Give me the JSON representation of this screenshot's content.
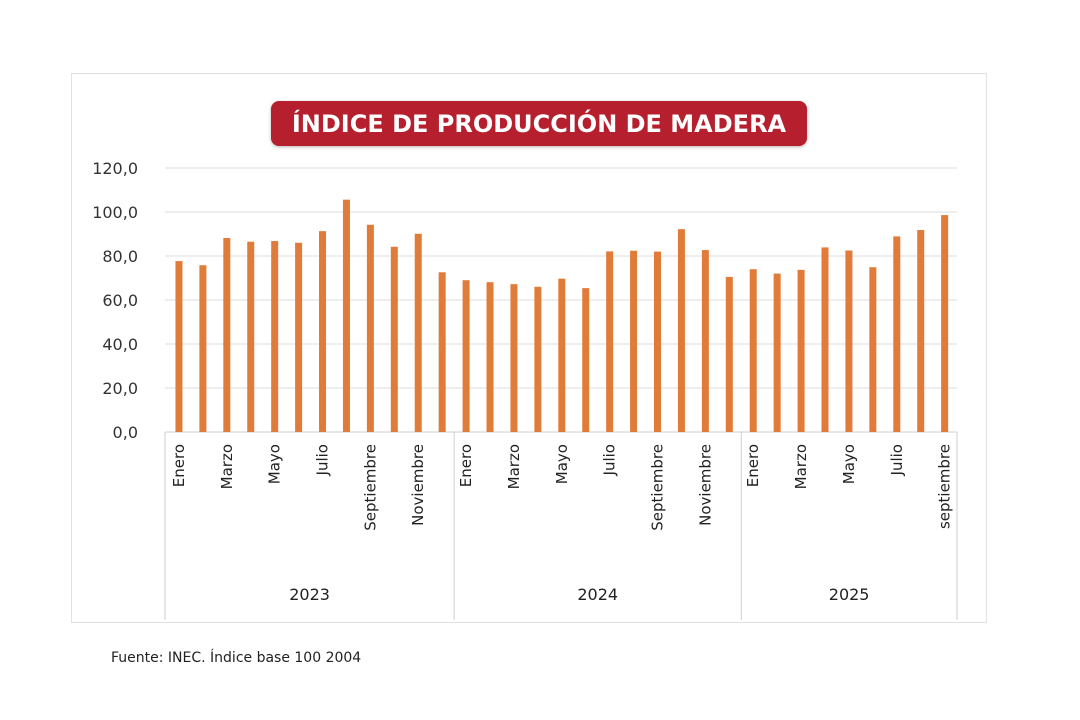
{
  "chart_data": {
    "type": "bar",
    "title": "ÍNDICE DE PRODUCCIÓN DE MADERA",
    "xlabel": "",
    "ylabel": "",
    "ylim": [
      0,
      120
    ],
    "yticks": [
      "0,0",
      "20,0",
      "40,0",
      "60,0",
      "80,0",
      "100,0",
      "120,0"
    ],
    "grid": true,
    "color": "#e07b39",
    "groups": [
      {
        "name": "2023",
        "labels": [
          "Enero",
          "",
          "Marzo",
          "",
          "Mayo",
          "",
          "Julio",
          "",
          "Septiembre",
          "",
          "Noviembre",
          ""
        ],
        "values": [
          77.7,
          75.8,
          88.2,
          86.5,
          86.8,
          86.0,
          91.3,
          105.6,
          94.2,
          84.2,
          90.1,
          72.6
        ]
      },
      {
        "name": "2024",
        "labels": [
          "Enero",
          "",
          "Marzo",
          "",
          "Mayo",
          "",
          "Julio",
          "",
          "Septiembre",
          "",
          "Noviembre",
          ""
        ],
        "values": [
          69.0,
          68.1,
          67.2,
          66.0,
          69.7,
          65.4,
          82.1,
          82.4,
          82.0,
          92.2,
          82.7,
          70.5
        ]
      },
      {
        "name": "2025",
        "labels": [
          "Enero",
          "",
          "Marzo",
          "",
          "Mayo",
          "",
          "Julio",
          "",
          "septiembre"
        ],
        "values": [
          74.0,
          72.0,
          73.7,
          83.9,
          82.5,
          74.9,
          88.9,
          91.8,
          98.6
        ]
      }
    ]
  },
  "footer": {
    "source": "Fuente: INEC.  Índice base 100 2004"
  }
}
